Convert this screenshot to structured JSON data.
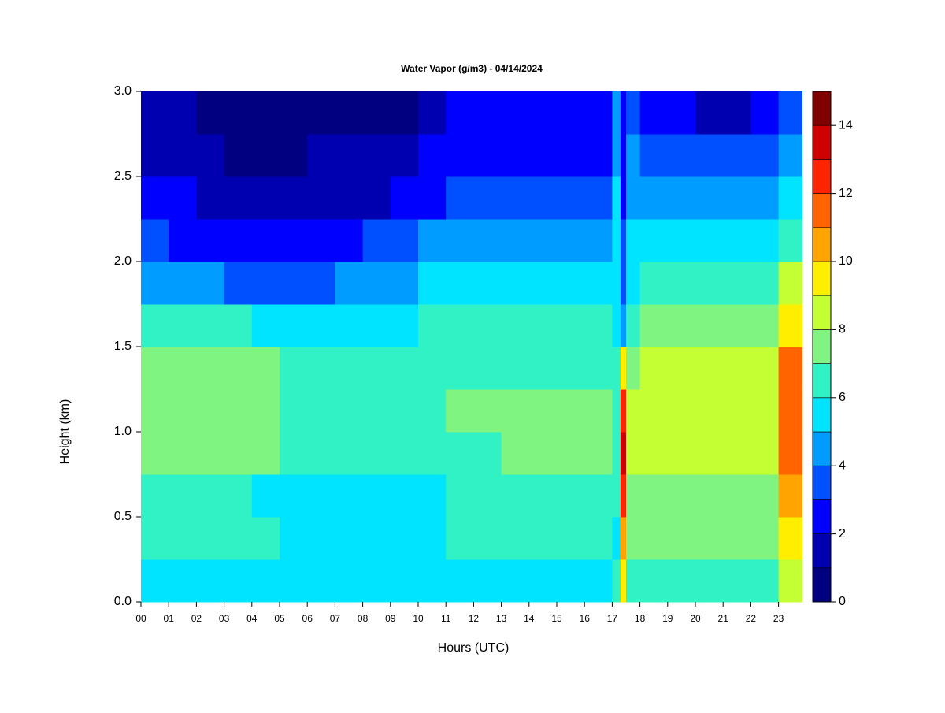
{
  "chart_data": {
    "type": "contour",
    "title": "Water Vapor (g/m3) - 04/14/2024",
    "xlabel": "Hours (UTC)",
    "ylabel": "Height (km)",
    "x": [
      0,
      1,
      2,
      3,
      4,
      5,
      6,
      7,
      8,
      9,
      10,
      11,
      12,
      13,
      14,
      15,
      16,
      17,
      17.3,
      17.5,
      18,
      19,
      20,
      21,
      22,
      23
    ],
    "y": [
      0,
      0.25,
      0.5,
      0.75,
      1,
      1.25,
      1.5,
      1.75,
      2,
      2.25,
      2.5,
      2.75
    ],
    "z": [
      [
        5.5,
        5.5,
        5.5,
        5.5,
        5.5,
        5.5,
        5.5,
        5.5,
        5.5,
        5.5,
        5.5,
        5.5,
        5.5,
        5.5,
        5.5,
        5.5,
        5.5,
        6,
        9,
        6,
        6.5,
        6.5,
        6.5,
        6.5,
        6.5,
        8.5
      ],
      [
        6.5,
        6.5,
        6.5,
        6.5,
        6.5,
        5.5,
        5.5,
        5.5,
        5.5,
        5.5,
        5.5,
        6,
        6,
        6,
        6,
        6,
        6,
        5.5,
        10,
        7,
        7.5,
        7.5,
        7.5,
        7.5,
        7.5,
        9.5
      ],
      [
        6.5,
        6.5,
        6.5,
        6.5,
        5.5,
        5.5,
        5.5,
        5.5,
        5.5,
        5.5,
        5.5,
        6.5,
        6.5,
        6.5,
        6.5,
        6.5,
        6.5,
        6,
        12,
        7.5,
        7.5,
        7.5,
        7.5,
        7.5,
        7.5,
        10.5
      ],
      [
        7.5,
        7.5,
        7.5,
        7.5,
        7.5,
        6.5,
        6.5,
        6.5,
        6.5,
        6.5,
        6.5,
        6.5,
        6.5,
        7.5,
        7.5,
        7.5,
        7.5,
        6.5,
        13,
        8,
        8.5,
        8.5,
        8.5,
        8.5,
        8.5,
        11.5
      ],
      [
        7.5,
        7.5,
        7.5,
        7.5,
        7.5,
        6.5,
        6.5,
        6.5,
        6.5,
        6.5,
        6.5,
        7,
        7,
        7,
        7,
        7,
        7,
        6.5,
        12,
        8,
        8.5,
        8.5,
        8.5,
        8.5,
        8.5,
        11.5
      ],
      [
        7,
        7,
        7,
        7,
        7,
        6.5,
        6.5,
        6.5,
        6.5,
        6.5,
        6.5,
        6.5,
        6.5,
        6.5,
        6.5,
        6.5,
        6.5,
        6,
        9,
        7.5,
        8.5,
        8.5,
        8.5,
        8.5,
        8.5,
        11
      ],
      [
        6,
        6,
        6,
        6,
        5.5,
        5.5,
        5.5,
        5.5,
        5.5,
        5.5,
        6,
        6,
        6,
        6,
        6,
        6,
        6,
        5.5,
        4,
        6.5,
        7.5,
        7.5,
        7.5,
        7.5,
        7.5,
        9.5
      ],
      [
        4.5,
        4.5,
        4.5,
        3.5,
        3.5,
        3.5,
        3.5,
        4.5,
        4.5,
        4.5,
        5.5,
        5.5,
        5.5,
        5.5,
        5.5,
        5.5,
        5.5,
        5.5,
        3,
        5.5,
        6.5,
        6.5,
        6.5,
        6.5,
        6.5,
        8.5
      ],
      [
        3.5,
        2.5,
        2.5,
        2.5,
        2.5,
        2.5,
        2.5,
        2.5,
        3.5,
        3.5,
        4.5,
        4.5,
        4.5,
        4.5,
        4.5,
        4.5,
        4.5,
        5.5,
        3,
        5,
        5.5,
        5.5,
        5.5,
        5.5,
        5.5,
        6.5
      ],
      [
        2.5,
        2.5,
        1.5,
        1.5,
        1.5,
        1.5,
        1.5,
        1.5,
        1.5,
        2.5,
        2.5,
        3.5,
        3.5,
        3.5,
        3.5,
        3.5,
        3.5,
        5,
        2.5,
        4.5,
        4.5,
        4.5,
        4.5,
        4.5,
        4.5,
        5.5
      ],
      [
        1.5,
        1.5,
        1.5,
        0.5,
        0.5,
        0.5,
        1.5,
        1.5,
        1.5,
        1.5,
        2.5,
        2.5,
        2.5,
        2.5,
        2.5,
        2.5,
        2.5,
        4.5,
        2.5,
        4,
        3.5,
        3.5,
        3.5,
        3.5,
        3.5,
        4.5
      ],
      [
        1.5,
        1.5,
        0.5,
        0.5,
        0.5,
        0.5,
        0.5,
        0.5,
        0.5,
        0.5,
        1.5,
        2.5,
        2.5,
        2.5,
        2.5,
        2.5,
        2.5,
        4,
        2,
        3.5,
        2.5,
        2.5,
        1.5,
        1.5,
        2.5,
        3.5
      ]
    ],
    "xlim": [
      0,
      23.85
    ],
    "ylim": [
      0,
      3
    ],
    "xticks": [
      {
        "value": 0,
        "label": "00"
      },
      {
        "value": 1,
        "label": "01"
      },
      {
        "value": 2,
        "label": "02"
      },
      {
        "value": 3,
        "label": "03"
      },
      {
        "value": 4,
        "label": "04"
      },
      {
        "value": 5,
        "label": "05"
      },
      {
        "value": 6,
        "label": "06"
      },
      {
        "value": 7,
        "label": "07"
      },
      {
        "value": 8,
        "label": "08"
      },
      {
        "value": 9,
        "label": "09"
      },
      10,
      11,
      12,
      13,
      14,
      15,
      16,
      17,
      18,
      19,
      20,
      21,
      22,
      23
    ],
    "yticks": [
      {
        "value": 0,
        "label": "0.0"
      },
      0.5,
      {
        "value": 1,
        "label": "1.0"
      },
      1.5,
      {
        "value": 2,
        "label": "2.0"
      },
      2.5,
      {
        "value": 3,
        "label": "3.0"
      }
    ],
    "levels": [
      0,
      1,
      2,
      3,
      4,
      5,
      6,
      7,
      8,
      9,
      10,
      11,
      12,
      13,
      14,
      15
    ],
    "colors": [
      "#000080",
      "#0000b0",
      "#0000ff",
      "#0050ff",
      "#009cff",
      "#00e4ff",
      "#30f2c4",
      "#80f480",
      "#c4ff34",
      "#ffee00",
      "#ffa400",
      "#ff6400",
      "#ff2400",
      "#d00000",
      "#800000"
    ],
    "colorbar_ticks": [
      0,
      2,
      4,
      6,
      8,
      10,
      12,
      14
    ]
  }
}
